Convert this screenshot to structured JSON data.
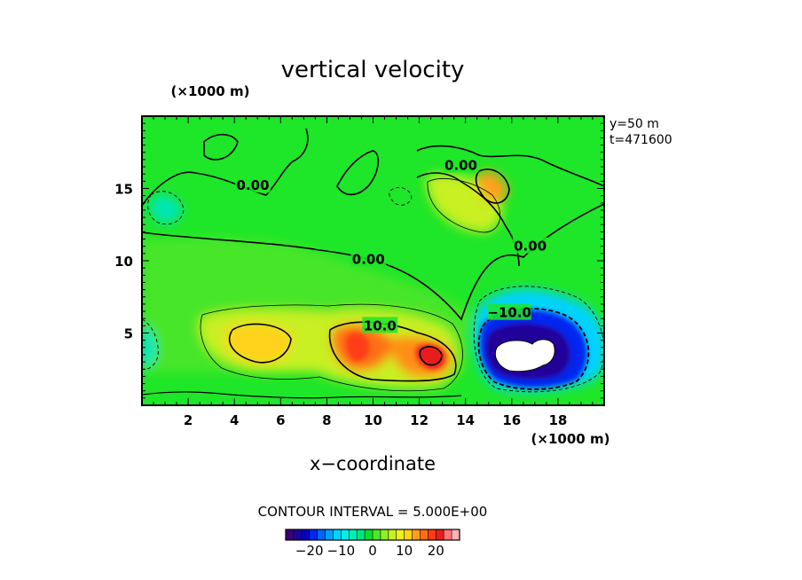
{
  "chart_data": {
    "type": "heatmap",
    "title": "vertical velocity",
    "xlabel": "x−coordinate",
    "x_unit": "(×1000 m)",
    "y_unit": "(×1000 m)",
    "info_lines": [
      "y=50  m",
      "t=471600"
    ],
    "xlim": [
      0,
      20
    ],
    "ylim": [
      0,
      20
    ],
    "x_ticks": [
      2,
      4,
      6,
      8,
      10,
      12,
      14,
      16,
      18
    ],
    "y_ticks": [
      5,
      10,
      15
    ],
    "contour_interval_label": "CONTOUR INTERVAL = 5.000E+00",
    "contour_labels": [
      {
        "text": "0.00",
        "x": 4.8,
        "y": 15.2
      },
      {
        "text": "0.00",
        "x": 9.8,
        "y": 10.1
      },
      {
        "text": "0.00",
        "x": 13.8,
        "y": 16.6
      },
      {
        "text": "0.00",
        "x": 16.8,
        "y": 11.0
      },
      {
        "text": "10.0",
        "x": 10.3,
        "y": 5.5
      },
      {
        "text": "−10.0",
        "x": 15.9,
        "y": 6.4
      }
    ],
    "colorbar": {
      "ticks": [
        "−20",
        "−10",
        "0",
        "10",
        "20"
      ],
      "tick_values": [
        -20,
        -10,
        0,
        10,
        20
      ],
      "range": [
        -27.5,
        27.5
      ],
      "colors": [
        "#3a0078",
        "#20009a",
        "#0000c8",
        "#0028f0",
        "#0064ff",
        "#00a0ff",
        "#00d2ff",
        "#00f0e6",
        "#00f0b4",
        "#00e678",
        "#10dc30",
        "#50e628",
        "#8cf028",
        "#c8f024",
        "#f0f020",
        "#ffd21e",
        "#ffa01c",
        "#ff6e14",
        "#ff3c14",
        "#e81e1e",
        "#ff7878",
        "#ffb4b4"
      ]
    },
    "features": [
      {
        "type": "updraft_max",
        "x": 12.8,
        "y": 3.0,
        "value": 21
      },
      {
        "type": "updraft",
        "x": 9.5,
        "y": 4.2,
        "value": 17
      },
      {
        "type": "updraft",
        "x": 5.0,
        "y": 4.2,
        "value": 10
      },
      {
        "type": "updraft",
        "x": 15.3,
        "y": 15.2,
        "value": 11
      },
      {
        "type": "downdraft_min",
        "x": 16.7,
        "y": 3.4,
        "value": -30
      },
      {
        "type": "downdraft",
        "x": 2.0,
        "y": 14.0,
        "value": -4
      },
      {
        "type": "downdraft",
        "x": 0.2,
        "y": 4.0,
        "value": -4
      }
    ]
  }
}
